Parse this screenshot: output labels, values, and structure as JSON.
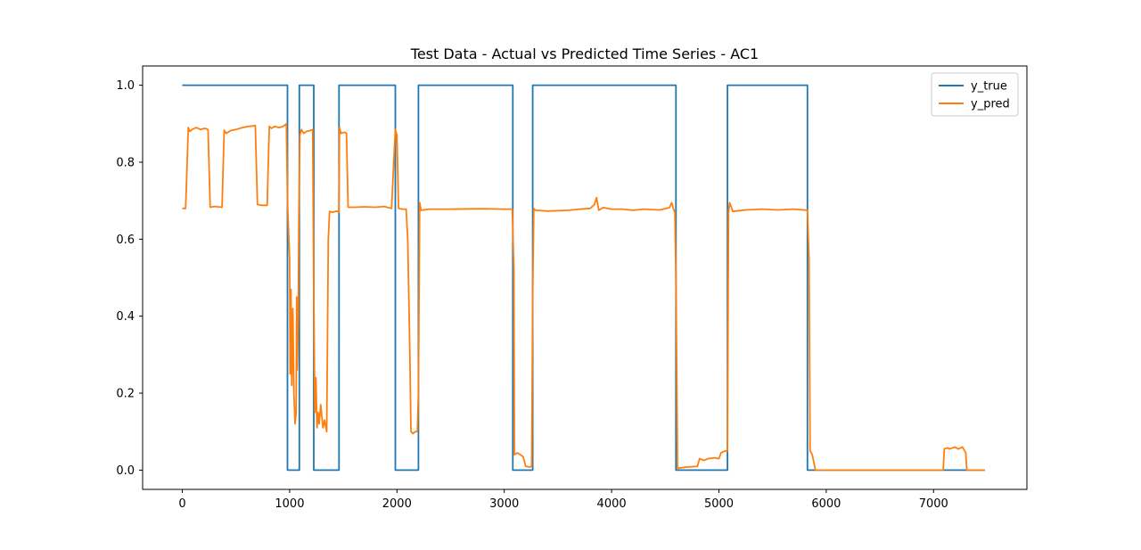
{
  "chart_data": {
    "type": "line",
    "title": "Test Data - Actual vs Predicted Time Series - AC1",
    "xlabel": "",
    "ylabel": "",
    "xlim": [
      -370,
      7870
    ],
    "ylim": [
      -0.05,
      1.05
    ],
    "xticks": [
      0,
      1000,
      2000,
      3000,
      4000,
      5000,
      6000,
      7000
    ],
    "yticks": [
      0.0,
      0.2,
      0.4,
      0.6,
      0.8,
      1.0
    ],
    "ytick_labels": [
      "0.0",
      "0.2",
      "0.4",
      "0.6",
      "0.8",
      "1.0"
    ],
    "grid": false,
    "legend": {
      "position": "top-right"
    },
    "series": [
      {
        "name": "y_true",
        "color": "#1f77b4",
        "points": [
          [
            0,
            1
          ],
          [
            980,
            1
          ],
          [
            980,
            0
          ],
          [
            1090,
            0
          ],
          [
            1090,
            1
          ],
          [
            1225,
            1
          ],
          [
            1225,
            0
          ],
          [
            1460,
            0
          ],
          [
            1460,
            1
          ],
          [
            1985,
            1
          ],
          [
            1985,
            0
          ],
          [
            2200,
            0
          ],
          [
            2200,
            1
          ],
          [
            3080,
            1
          ],
          [
            3080,
            0
          ],
          [
            3265,
            0
          ],
          [
            3265,
            1
          ],
          [
            4600,
            1
          ],
          [
            4600,
            0
          ],
          [
            5080,
            0
          ],
          [
            5080,
            1
          ],
          [
            5825,
            1
          ],
          [
            5825,
            0
          ],
          [
            7480,
            0
          ]
        ]
      },
      {
        "name": "y_pred",
        "color": "#ff7f0e",
        "points": [
          [
            0,
            0.68
          ],
          [
            30,
            0.68
          ],
          [
            45,
            0.8
          ],
          [
            55,
            0.89
          ],
          [
            70,
            0.88
          ],
          [
            90,
            0.885
          ],
          [
            130,
            0.89
          ],
          [
            170,
            0.885
          ],
          [
            210,
            0.888
          ],
          [
            240,
            0.885
          ],
          [
            260,
            0.683
          ],
          [
            300,
            0.685
          ],
          [
            370,
            0.683
          ],
          [
            390,
            0.883
          ],
          [
            410,
            0.875
          ],
          [
            450,
            0.882
          ],
          [
            500,
            0.885
          ],
          [
            560,
            0.89
          ],
          [
            620,
            0.893
          ],
          [
            680,
            0.895
          ],
          [
            700,
            0.69
          ],
          [
            740,
            0.688
          ],
          [
            790,
            0.688
          ],
          [
            810,
            0.893
          ],
          [
            830,
            0.888
          ],
          [
            860,
            0.893
          ],
          [
            900,
            0.89
          ],
          [
            940,
            0.893
          ],
          [
            970,
            0.9
          ],
          [
            980,
            0.7
          ],
          [
            990,
            0.62
          ],
          [
            1000,
            0.55
          ],
          [
            1005,
            0.25
          ],
          [
            1012,
            0.47
          ],
          [
            1020,
            0.22
          ],
          [
            1030,
            0.42
          ],
          [
            1040,
            0.2
          ],
          [
            1050,
            0.12
          ],
          [
            1060,
            0.15
          ],
          [
            1065,
            0.45
          ],
          [
            1070,
            0.26
          ],
          [
            1080,
            0.4
          ],
          [
            1085,
            0.65
          ],
          [
            1095,
            0.87
          ],
          [
            1110,
            0.885
          ],
          [
            1130,
            0.875
          ],
          [
            1160,
            0.88
          ],
          [
            1190,
            0.882
          ],
          [
            1215,
            0.885
          ],
          [
            1225,
            0.45
          ],
          [
            1235,
            0.15
          ],
          [
            1245,
            0.24
          ],
          [
            1255,
            0.11
          ],
          [
            1265,
            0.15
          ],
          [
            1275,
            0.12
          ],
          [
            1290,
            0.17
          ],
          [
            1310,
            0.11
          ],
          [
            1325,
            0.13
          ],
          [
            1345,
            0.1
          ],
          [
            1360,
            0.6
          ],
          [
            1372,
            0.672
          ],
          [
            1400,
            0.67
          ],
          [
            1440,
            0.673
          ],
          [
            1458,
            0.67
          ],
          [
            1465,
            0.89
          ],
          [
            1480,
            0.875
          ],
          [
            1510,
            0.878
          ],
          [
            1530,
            0.875
          ],
          [
            1545,
            0.683
          ],
          [
            1600,
            0.683
          ],
          [
            1700,
            0.684
          ],
          [
            1800,
            0.683
          ],
          [
            1880,
            0.685
          ],
          [
            1920,
            0.682
          ],
          [
            1950,
            0.68
          ],
          [
            1970,
            0.8
          ],
          [
            1985,
            0.885
          ],
          [
            2000,
            0.87
          ],
          [
            2015,
            0.68
          ],
          [
            2050,
            0.678
          ],
          [
            2085,
            0.678
          ],
          [
            2100,
            0.6
          ],
          [
            2120,
            0.3
          ],
          [
            2130,
            0.1
          ],
          [
            2150,
            0.095
          ],
          [
            2170,
            0.1
          ],
          [
            2190,
            0.1
          ],
          [
            2200,
            0.2
          ],
          [
            2212,
            0.695
          ],
          [
            2225,
            0.675
          ],
          [
            2300,
            0.678
          ],
          [
            2500,
            0.678
          ],
          [
            2800,
            0.679
          ],
          [
            3000,
            0.678
          ],
          [
            3075,
            0.678
          ],
          [
            3090,
            0.52
          ],
          [
            3095,
            0.04
          ],
          [
            3120,
            0.045
          ],
          [
            3150,
            0.04
          ],
          [
            3175,
            0.035
          ],
          [
            3200,
            0.01
          ],
          [
            3240,
            0.008
          ],
          [
            3255,
            0.01
          ],
          [
            3265,
            0.45
          ],
          [
            3275,
            0.68
          ],
          [
            3290,
            0.675
          ],
          [
            3400,
            0.673
          ],
          [
            3600,
            0.675
          ],
          [
            3700,
            0.678
          ],
          [
            3800,
            0.68
          ],
          [
            3840,
            0.69
          ],
          [
            3860,
            0.708
          ],
          [
            3880,
            0.675
          ],
          [
            3920,
            0.682
          ],
          [
            4000,
            0.678
          ],
          [
            4100,
            0.678
          ],
          [
            4200,
            0.675
          ],
          [
            4300,
            0.678
          ],
          [
            4450,
            0.676
          ],
          [
            4540,
            0.682
          ],
          [
            4560,
            0.695
          ],
          [
            4575,
            0.68
          ],
          [
            4590,
            0.67
          ],
          [
            4600,
            0.5
          ],
          [
            4615,
            0.005
          ],
          [
            4700,
            0.008
          ],
          [
            4800,
            0.01
          ],
          [
            4820,
            0.03
          ],
          [
            4860,
            0.025
          ],
          [
            4900,
            0.03
          ],
          [
            4960,
            0.032
          ],
          [
            5000,
            0.03
          ],
          [
            5020,
            0.045
          ],
          [
            5060,
            0.05
          ],
          [
            5080,
            0.05
          ],
          [
            5090,
            0.67
          ],
          [
            5100,
            0.695
          ],
          [
            5130,
            0.672
          ],
          [
            5250,
            0.676
          ],
          [
            5400,
            0.678
          ],
          [
            5550,
            0.676
          ],
          [
            5700,
            0.678
          ],
          [
            5825,
            0.675
          ],
          [
            5840,
            0.55
          ],
          [
            5850,
            0.05
          ],
          [
            5870,
            0.04
          ],
          [
            5900,
            0.0
          ],
          [
            6000,
            0.0
          ],
          [
            6500,
            0.0
          ],
          [
            7000,
            0.0
          ],
          [
            7090,
            0.0
          ],
          [
            7100,
            0.055
          ],
          [
            7130,
            0.058
          ],
          [
            7150,
            0.055
          ],
          [
            7200,
            0.06
          ],
          [
            7230,
            0.055
          ],
          [
            7270,
            0.06
          ],
          [
            7300,
            0.045
          ],
          [
            7310,
            0.0
          ],
          [
            7480,
            0.0
          ]
        ]
      }
    ]
  }
}
